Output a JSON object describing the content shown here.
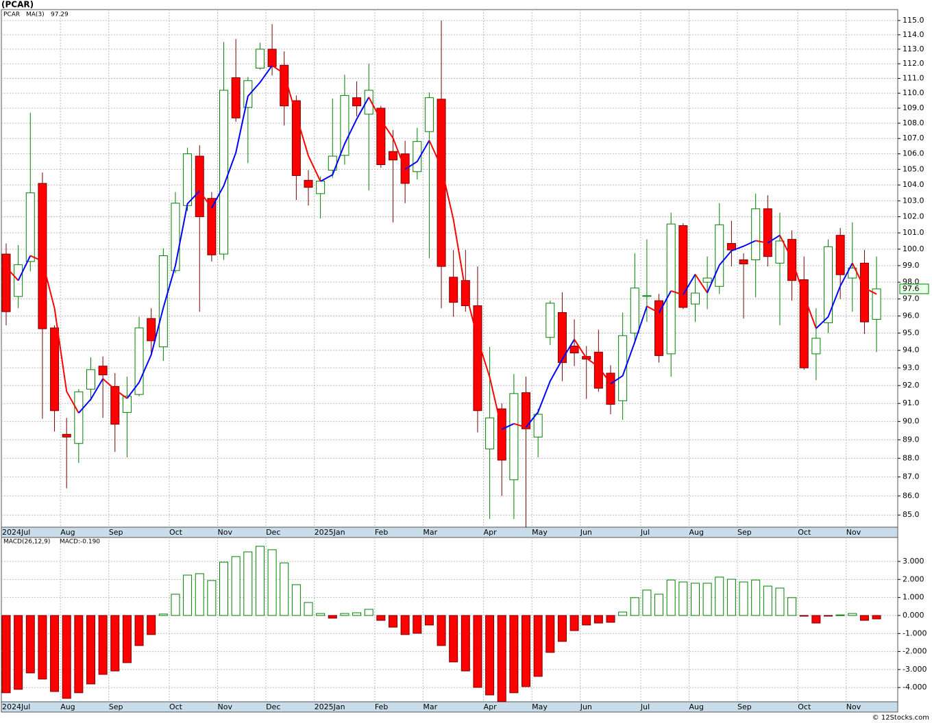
{
  "chart_data": [
    {
      "type": "candlestick",
      "title": "(PCAR)",
      "symbol": "PCAR",
      "categories": [
        "2024Jul",
        null,
        null,
        null,
        null,
        "Aug",
        null,
        null,
        null,
        "Sep",
        null,
        null,
        null,
        null,
        "Oct",
        null,
        null,
        null,
        "Nov",
        null,
        null,
        null,
        "Dec",
        null,
        null,
        null,
        "2025Jan",
        null,
        null,
        null,
        null,
        "Feb",
        null,
        null,
        null,
        "Mar",
        null,
        null,
        null,
        null,
        "Apr",
        null,
        null,
        null,
        "May",
        null,
        null,
        null,
        "Jun",
        null,
        null,
        null,
        null,
        "Jul",
        null,
        null,
        null,
        "Aug",
        null,
        null,
        null,
        "Sep",
        null,
        null,
        null,
        null,
        "Oct",
        null,
        null,
        null,
        "Nov",
        null,
        null
      ],
      "open": [
        99.7,
        97.15,
        99.25,
        104.1,
        95.3,
        89.3,
        88.8,
        91.8,
        93.1,
        91.95,
        90.5,
        91.5,
        95.85,
        94.2,
        98.7,
        102.7,
        105.85,
        103.15,
        99.7,
        111.05,
        109.05,
        111.7,
        113.0,
        111.9,
        109.5,
        104.3,
        103.45,
        104.95,
        105.9,
        109.7,
        108.6,
        109.0,
        106.15,
        106.0,
        104.85,
        107.45,
        109.6,
        98.3,
        98.1,
        96.6,
        88.5,
        90.7,
        86.85,
        91.6,
        89.15,
        94.75,
        96.2,
        94.25,
        93.65,
        93.9,
        92.7,
        91.15,
        95.0,
        97.15,
        96.9,
        93.8,
        101.45,
        96.7,
        98.0,
        97.75,
        100.35,
        99.35,
        99.35,
        102.5,
        99.15,
        100.6,
        98.15,
        93.8,
        95.6,
        100.85,
        98.25,
        99.15,
        95.8
      ],
      "high": [
        100.35,
        100.25,
        108.7,
        104.8,
        95.45,
        90.2,
        91.8,
        93.6,
        93.65,
        92.7,
        92.5,
        95.95,
        96.45,
        100.05,
        103.55,
        106.4,
        106.55,
        103.55,
        113.5,
        113.7,
        111.1,
        113.45,
        114.75,
        112.85,
        109.85,
        104.95,
        104.55,
        109.65,
        111.25,
        110.8,
        112.0,
        109.15,
        107.55,
        106.85,
        107.7,
        110.05,
        115.0,
        99.95,
        99.95,
        98.95,
        94.2,
        91.0,
        92.65,
        92.5,
        90.7,
        96.9,
        97.4,
        95.8,
        94.25,
        95.2,
        93.15,
        96.2,
        99.75,
        100.6,
        97.3,
        102.25,
        101.6,
        98.5,
        99.55,
        102.85,
        101.75,
        99.75,
        103.45,
        103.35,
        102.25,
        101.15,
        99.55,
        96.45,
        100.6,
        101.3,
        101.65,
        99.95,
        99.55
      ],
      "low": [
        95.45,
        96.45,
        98.65,
        90.15,
        89.45,
        86.4,
        87.75,
        91.15,
        90.2,
        88.35,
        88.05,
        91.4,
        93.7,
        93.4,
        98.55,
        102.35,
        96.25,
        99.25,
        99.35,
        108.1,
        105.4,
        111.6,
        111.2,
        107.85,
        103.05,
        102.7,
        101.9,
        104.45,
        105.3,
        108.45,
        103.65,
        105.1,
        101.65,
        102.85,
        104.35,
        99.45,
        96.45,
        95.95,
        96.25,
        89.4,
        84.8,
        86.0,
        84.8,
        84.35,
        88.05,
        94.3,
        92.25,
        93.1,
        91.25,
        91.65,
        90.4,
        90.1,
        94.4,
        95.65,
        93.3,
        92.5,
        96.4,
        95.65,
        96.4,
        97.3,
        98.95,
        95.85,
        97.1,
        98.95,
        95.45,
        96.9,
        92.9,
        92.3,
        95.0,
        97.0,
        96.25,
        94.95,
        93.9
      ],
      "close": [
        96.25,
        99.05,
        103.5,
        95.25,
        90.6,
        89.15,
        91.65,
        92.9,
        92.6,
        89.85,
        91.4,
        95.3,
        94.55,
        99.6,
        102.85,
        106.0,
        102.0,
        99.65,
        110.2,
        108.35,
        110.85,
        113.0,
        111.8,
        109.15,
        104.6,
        103.85,
        104.25,
        105.85,
        109.85,
        109.15,
        110.2,
        105.3,
        105.6,
        104.1,
        106.8,
        109.7,
        98.95,
        96.8,
        96.6,
        90.6,
        90.2,
        87.9,
        91.55,
        89.6,
        90.4,
        96.75,
        93.3,
        93.85,
        93.5,
        91.85,
        90.95,
        94.85,
        97.65,
        97.2,
        93.7,
        101.55,
        96.5,
        97.35,
        98.25,
        101.5,
        99.95,
        99.1,
        102.5,
        99.55,
        100.5,
        98.1,
        93.0,
        94.7,
        100.15,
        98.45,
        98.85,
        95.65,
        97.6
      ],
      "up_color": "#008000",
      "down_color": "#ff0000",
      "ma": {
        "name": "MA(3)",
        "up_color": "#0000ff",
        "down_color": "#ff0000",
        "values": [
          98.9,
          98.1,
          99.6,
          99.27,
          96.45,
          91.67,
          90.47,
          91.23,
          92.38,
          91.78,
          91.28,
          92.18,
          93.75,
          96.48,
          99.0,
          102.82,
          103.62,
          102.55,
          103.95,
          106.07,
          109.8,
          110.73,
          111.88,
          111.32,
          108.52,
          105.87,
          104.23,
          104.65,
          106.65,
          108.28,
          109.73,
          108.22,
          107.03,
          105.0,
          105.5,
          106.87,
          105.15,
          101.82,
          97.45,
          94.67,
          92.47,
          89.57,
          89.88,
          89.68,
          90.52,
          92.25,
          93.48,
          94.63,
          93.55,
          93.07,
          92.1,
          92.55,
          94.48,
          96.57,
          96.18,
          97.48,
          97.25,
          98.47,
          97.37,
          99.03,
          99.9,
          100.18,
          100.52,
          100.38,
          100.85,
          99.38,
          97.2,
          95.27,
          95.95,
          97.77,
          99.15,
          97.65,
          97.29
        ]
      },
      "log": true,
      "grid": true,
      "ylim": [
        84.37,
        115.77
      ],
      "yticks": [
        {
          "value": 85,
          "label": "85.0"
        },
        {
          "value": 86,
          "label": "86.0"
        },
        {
          "value": 87,
          "label": "87.0"
        },
        {
          "value": 88,
          "label": "88.0"
        },
        {
          "value": 89,
          "label": "89.0"
        },
        {
          "value": 90,
          "label": "90.0"
        },
        {
          "value": 91,
          "label": "91.0"
        },
        {
          "value": 92,
          "label": "92.0"
        },
        {
          "value": 93,
          "label": "93.0"
        },
        {
          "value": 94,
          "label": "94.0"
        },
        {
          "value": 95,
          "label": "95.0"
        },
        {
          "value": 96,
          "label": "96.0"
        },
        {
          "value": 97,
          "label": "97.0"
        },
        {
          "value": 98,
          "label": "98.0"
        },
        {
          "value": 99,
          "label": "99.0"
        },
        {
          "value": 100,
          "label": "100.0"
        },
        {
          "value": 101,
          "label": "101.0"
        },
        {
          "value": 102,
          "label": "102.0"
        },
        {
          "value": 103,
          "label": "103.0"
        },
        {
          "value": 104,
          "label": "104.0"
        },
        {
          "value": 105,
          "label": "105.0"
        },
        {
          "value": 106,
          "label": "106.0"
        },
        {
          "value": 107,
          "label": "107.0"
        },
        {
          "value": 108,
          "label": "108.0"
        },
        {
          "value": 109,
          "label": "109.0"
        },
        {
          "value": 110,
          "label": "110.0"
        },
        {
          "value": 111,
          "label": "111.0"
        },
        {
          "value": 112,
          "label": "112.0"
        },
        {
          "value": 113,
          "label": "113.0"
        },
        {
          "value": 114,
          "label": "114.0"
        },
        {
          "value": 115,
          "label": "115.0"
        }
      ]
    },
    {
      "type": "bar",
      "name": "MACD(26,12,9)",
      "value_label": "MACD:-0.190",
      "categories": [
        "2024Jul",
        null,
        null,
        null,
        null,
        "Aug",
        null,
        null,
        null,
        "Sep",
        null,
        null,
        null,
        null,
        "Oct",
        null,
        null,
        null,
        "Nov",
        null,
        null,
        null,
        "Dec",
        null,
        null,
        null,
        "2025Jan",
        null,
        null,
        null,
        null,
        "Feb",
        null,
        null,
        null,
        "Mar",
        null,
        null,
        null,
        null,
        "Apr",
        null,
        null,
        null,
        "May",
        null,
        null,
        null,
        "Jun",
        null,
        null,
        null,
        null,
        "Jul",
        null,
        null,
        null,
        "Aug",
        null,
        null,
        null,
        "Sep",
        null,
        null,
        null,
        null,
        "Oct",
        null,
        null,
        null,
        "Nov",
        null,
        null
      ],
      "values": [
        -4.29,
        -4.1,
        -3.19,
        -3.53,
        -4.22,
        -4.6,
        -4.29,
        -3.8,
        -3.27,
        -3.08,
        -2.62,
        -1.67,
        -1.06,
        0.08,
        1.18,
        2.24,
        2.32,
        1.94,
        2.96,
        3.27,
        3.53,
        3.84,
        3.65,
        2.92,
        1.71,
        0.72,
        0.11,
        -0.15,
        0.11,
        0.15,
        0.34,
        -0.27,
        -0.65,
        -1.06,
        -0.99,
        -0.53,
        -1.67,
        -2.58,
        -3.08,
        -3.99,
        -4.41,
        -4.78,
        -4.29,
        -3.95,
        -3.38,
        -2.05,
        -1.44,
        -0.84,
        -0.53,
        -0.42,
        -0.38,
        0.19,
        0.99,
        1.41,
        1.18,
        1.97,
        1.86,
        1.79,
        1.79,
        2.13,
        2.01,
        1.86,
        1.97,
        1.63,
        1.52,
        0.99,
        -0.04,
        -0.42,
        -0.01,
        0.03,
        0.11,
        -0.27,
        -0.19
      ],
      "up_color": "#008000",
      "down_color": "#ff0000",
      "grid": true,
      "ylim": [
        -4.79,
        4.33
      ],
      "yticks": [
        {
          "value": -4,
          "label": "-4.000"
        },
        {
          "value": -3,
          "label": "-3.000"
        },
        {
          "value": -2,
          "label": "-2.000"
        },
        {
          "value": -1,
          "label": "-1.000"
        },
        {
          "value": 0,
          "label": "0.000"
        },
        {
          "value": 1,
          "label": "1.000"
        },
        {
          "value": 2,
          "label": "2.000"
        },
        {
          "value": 3,
          "label": "3.000"
        }
      ]
    }
  ],
  "footer": "© 12Stocks.com"
}
